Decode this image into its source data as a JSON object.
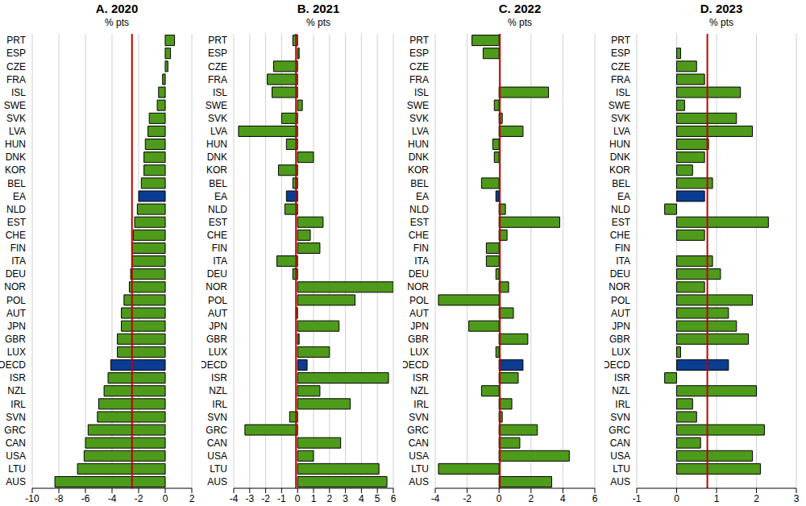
{
  "chart_data": [
    {
      "type": "bar",
      "orientation": "horizontal",
      "title": "A. 2020",
      "subtitle": "% pts",
      "grid": true,
      "categories": [
        "PRT",
        "ESP",
        "CZE",
        "FRA",
        "ISL",
        "SWE",
        "SVK",
        "LVA",
        "HUN",
        "DNK",
        "KOR",
        "BEL",
        "EA",
        "NLD",
        "EST",
        "CHE",
        "FIN",
        "ITA",
        "DEU",
        "NOR",
        "POL",
        "AUT",
        "JPN",
        "GBR",
        "LUX",
        "OECD",
        "ISR",
        "NZL",
        "IRL",
        "SVN",
        "GRC",
        "CAN",
        "USA",
        "LTU",
        "AUS"
      ],
      "values": [
        0.7,
        0.4,
        0.2,
        -0.2,
        -0.5,
        -0.6,
        -1.2,
        -1.3,
        -1.5,
        -1.6,
        -1.6,
        -1.8,
        -2.0,
        -2.1,
        -2.3,
        -2.4,
        -2.5,
        -2.5,
        -2.6,
        -2.7,
        -3.1,
        -3.3,
        -3.3,
        -3.6,
        -3.6,
        -4.1,
        -4.3,
        -4.6,
        -5.0,
        -5.1,
        -5.8,
        -6.0,
        -6.1,
        -6.6,
        -8.3
      ],
      "colors": [
        "#4e9a1b",
        "#4e9a1b",
        "#4e9a1b",
        "#4e9a1b",
        "#4e9a1b",
        "#4e9a1b",
        "#4e9a1b",
        "#4e9a1b",
        "#4e9a1b",
        "#4e9a1b",
        "#4e9a1b",
        "#4e9a1b",
        "#0a3d91",
        "#4e9a1b",
        "#4e9a1b",
        "#4e9a1b",
        "#4e9a1b",
        "#4e9a1b",
        "#4e9a1b",
        "#4e9a1b",
        "#4e9a1b",
        "#4e9a1b",
        "#4e9a1b",
        "#4e9a1b",
        "#4e9a1b",
        "#0a3d91",
        "#4e9a1b",
        "#4e9a1b",
        "#4e9a1b",
        "#4e9a1b",
        "#4e9a1b",
        "#4e9a1b",
        "#4e9a1b",
        "#4e9a1b",
        "#4e9a1b"
      ],
      "xlim": [
        -10,
        2
      ],
      "xticks": [
        -10,
        -8,
        -6,
        -4,
        -2,
        0,
        2
      ],
      "reference_line": {
        "value": -2.5,
        "color": "#c00000"
      }
    },
    {
      "type": "bar",
      "orientation": "horizontal",
      "title": "B. 2021",
      "subtitle": "% pts",
      "grid": true,
      "categories": [
        "PRT",
        "ESP",
        "CZE",
        "FRA",
        "ISL",
        "SWE",
        "SVK",
        "LVA",
        "HUN",
        "DNK",
        "KOR",
        "BEL",
        "EA",
        "NLD",
        "EST",
        "CHE",
        "FIN",
        "ITA",
        "DEU",
        "NOR",
        "POL",
        "AUT",
        "JPN",
        "GBR",
        "LUX",
        "OECD",
        "ISR",
        "NZL",
        "IRL",
        "SVN",
        "GRC",
        "CAN",
        "USA",
        "LTU",
        "AUS"
      ],
      "values": [
        -0.3,
        0.1,
        -1.5,
        -1.9,
        -1.6,
        0.3,
        -1.0,
        -3.7,
        -0.7,
        1.0,
        -1.2,
        -0.3,
        -0.7,
        -0.8,
        1.6,
        0.8,
        1.4,
        -1.3,
        -0.3,
        6.0,
        3.6,
        -0.1,
        2.6,
        0.1,
        2.0,
        0.6,
        5.7,
        1.4,
        3.3,
        -0.5,
        -3.3,
        2.7,
        1.0,
        5.1,
        5.6
      ],
      "colors": [
        "#4e9a1b",
        "#4e9a1b",
        "#4e9a1b",
        "#4e9a1b",
        "#4e9a1b",
        "#4e9a1b",
        "#4e9a1b",
        "#4e9a1b",
        "#4e9a1b",
        "#4e9a1b",
        "#4e9a1b",
        "#4e9a1b",
        "#0a3d91",
        "#4e9a1b",
        "#4e9a1b",
        "#4e9a1b",
        "#4e9a1b",
        "#4e9a1b",
        "#4e9a1b",
        "#4e9a1b",
        "#4e9a1b",
        "#4e9a1b",
        "#4e9a1b",
        "#4e9a1b",
        "#4e9a1b",
        "#0a3d91",
        "#4e9a1b",
        "#4e9a1b",
        "#4e9a1b",
        "#4e9a1b",
        "#4e9a1b",
        "#4e9a1b",
        "#4e9a1b",
        "#4e9a1b",
        "#4e9a1b"
      ],
      "xlim": [
        -4,
        6
      ],
      "xticks": [
        -4,
        -3,
        -2,
        -1,
        0,
        1,
        2,
        3,
        4,
        5,
        6
      ],
      "reference_line": {
        "value": -0.1,
        "color": "#c00000"
      }
    },
    {
      "type": "bar",
      "orientation": "horizontal",
      "title": "C. 2022",
      "subtitle": "% pts",
      "grid": true,
      "categories": [
        "PRT",
        "ESP",
        "CZE",
        "FRA",
        "ISL",
        "SWE",
        "SVK",
        "LVA",
        "HUN",
        "DNK",
        "KOR",
        "BEL",
        "EA",
        "NLD",
        "EST",
        "CHE",
        "FIN",
        "ITA",
        "DEU",
        "NOR",
        "POL",
        "AUT",
        "JPN",
        "GBR",
        "LUX",
        "OECD",
        "ISR",
        "NZL",
        "IRL",
        "SVN",
        "GRC",
        "CAN",
        "USA",
        "LTU",
        "AUS"
      ],
      "values": [
        -1.7,
        -1.0,
        0.0,
        0.0,
        3.1,
        -0.3,
        0.2,
        1.5,
        -0.4,
        -0.3,
        0.0,
        -1.1,
        -0.2,
        0.4,
        3.8,
        0.5,
        -0.8,
        -0.8,
        -0.2,
        0.6,
        -3.8,
        0.9,
        -1.9,
        1.8,
        -0.2,
        1.5,
        1.2,
        -1.1,
        0.8,
        0.2,
        2.4,
        1.3,
        4.4,
        -3.8,
        3.3
      ],
      "colors": [
        "#4e9a1b",
        "#4e9a1b",
        "#4e9a1b",
        "#4e9a1b",
        "#4e9a1b",
        "#4e9a1b",
        "#4e9a1b",
        "#4e9a1b",
        "#4e9a1b",
        "#4e9a1b",
        "#4e9a1b",
        "#4e9a1b",
        "#0a3d91",
        "#4e9a1b",
        "#4e9a1b",
        "#4e9a1b",
        "#4e9a1b",
        "#4e9a1b",
        "#4e9a1b",
        "#4e9a1b",
        "#4e9a1b",
        "#4e9a1b",
        "#4e9a1b",
        "#4e9a1b",
        "#4e9a1b",
        "#0a3d91",
        "#4e9a1b",
        "#4e9a1b",
        "#4e9a1b",
        "#4e9a1b",
        "#4e9a1b",
        "#4e9a1b",
        "#4e9a1b",
        "#4e9a1b",
        "#4e9a1b"
      ],
      "xlim": [
        -4,
        6
      ],
      "xticks": [
        -4,
        -2,
        0,
        2,
        4,
        6
      ],
      "reference_line": {
        "value": 0.05,
        "color": "#c00000"
      }
    },
    {
      "type": "bar",
      "orientation": "horizontal",
      "title": "D. 2023",
      "subtitle": "% pts",
      "grid": true,
      "categories": [
        "PRT",
        "ESP",
        "CZE",
        "FRA",
        "ISL",
        "SWE",
        "SVK",
        "LVA",
        "HUN",
        "DNK",
        "KOR",
        "BEL",
        "EA",
        "NLD",
        "EST",
        "CHE",
        "FIN",
        "ITA",
        "DEU",
        "NOR",
        "POL",
        "AUT",
        "JPN",
        "GBR",
        "LUX",
        "OECD",
        "ISR",
        "NZL",
        "IRL",
        "SVN",
        "GRC",
        "CAN",
        "USA",
        "LTU",
        "AUS"
      ],
      "values": [
        0.0,
        0.1,
        0.5,
        0.7,
        1.6,
        0.2,
        1.5,
        1.9,
        0.8,
        0.7,
        0.4,
        0.9,
        0.7,
        -0.3,
        2.3,
        0.7,
        0.0,
        0.9,
        1.1,
        0.7,
        1.9,
        1.3,
        1.5,
        1.8,
        0.1,
        1.3,
        -0.3,
        2.0,
        0.4,
        0.5,
        2.2,
        0.6,
        1.9,
        2.1,
        0.0
      ],
      "colors": [
        "#4e9a1b",
        "#4e9a1b",
        "#4e9a1b",
        "#4e9a1b",
        "#4e9a1b",
        "#4e9a1b",
        "#4e9a1b",
        "#4e9a1b",
        "#4e9a1b",
        "#4e9a1b",
        "#4e9a1b",
        "#4e9a1b",
        "#0a3d91",
        "#4e9a1b",
        "#4e9a1b",
        "#4e9a1b",
        "#4e9a1b",
        "#4e9a1b",
        "#4e9a1b",
        "#4e9a1b",
        "#4e9a1b",
        "#4e9a1b",
        "#4e9a1b",
        "#4e9a1b",
        "#4e9a1b",
        "#0a3d91",
        "#4e9a1b",
        "#4e9a1b",
        "#4e9a1b",
        "#4e9a1b",
        "#4e9a1b",
        "#4e9a1b",
        "#4e9a1b",
        "#4e9a1b",
        "#4e9a1b"
      ],
      "xlim": [
        -1,
        3
      ],
      "xticks": [
        -1,
        0,
        1,
        2,
        3
      ],
      "reference_line": {
        "value": 0.77,
        "color": "#c00000"
      }
    }
  ]
}
